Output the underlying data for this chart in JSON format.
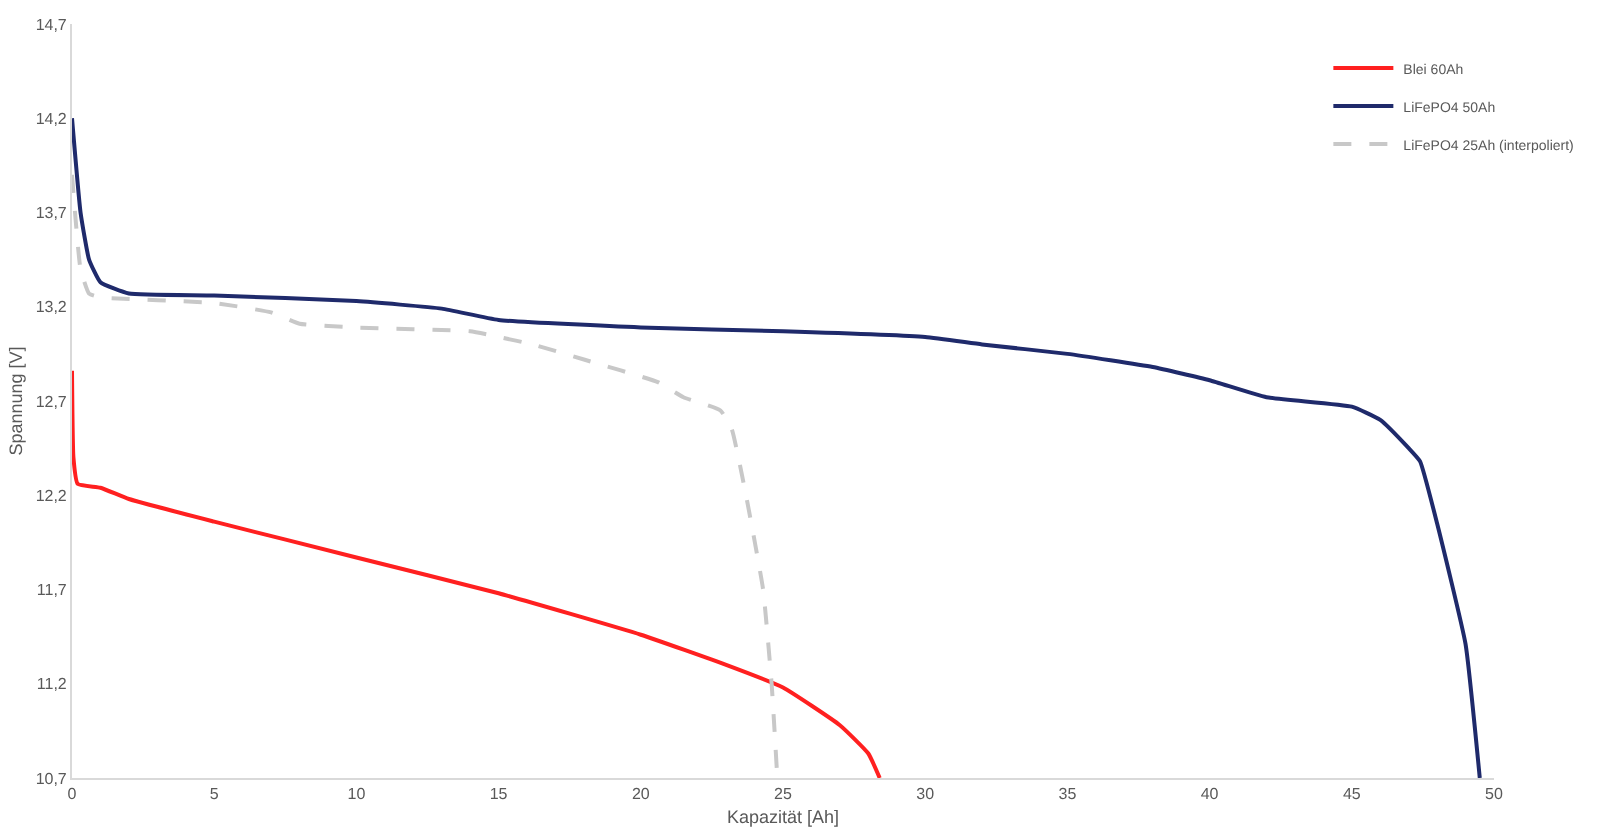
{
  "chart_data": {
    "type": "line",
    "xlabel": "Kapazität [Ah]",
    "ylabel": "Spannung [V]",
    "xlim": [
      0,
      50
    ],
    "xticks": [
      0,
      5,
      10,
      15,
      20,
      25,
      30,
      35,
      40,
      45,
      50
    ],
    "ylim": [
      10.7,
      14.7
    ],
    "yticks": [
      {
        "value": 10.7,
        "label": "10,7"
      },
      {
        "value": 11.2,
        "label": "11,2"
      },
      {
        "value": 11.7,
        "label": "11,7"
      },
      {
        "value": 12.2,
        "label": "12,2"
      },
      {
        "value": 12.7,
        "label": "12,7"
      },
      {
        "value": 13.2,
        "label": "13,2"
      },
      {
        "value": 13.7,
        "label": "13,7"
      },
      {
        "value": 14.2,
        "label": "14,2"
      },
      {
        "value": 14.7,
        "label": "14,7"
      }
    ],
    "grid": false,
    "legend": "top right",
    "marker": "none",
    "series": [
      {
        "name": "Blei 60Ah",
        "color": "#ff2020",
        "line_style": "solid",
        "x": [
          0,
          0.05,
          0.2,
          1,
          2,
          5,
          10,
          15,
          20,
          23,
          25,
          27,
          28,
          28.4
        ],
        "values": [
          12.86,
          12.4,
          12.26,
          12.24,
          12.18,
          12.06,
          11.87,
          11.68,
          11.46,
          11.3,
          11.18,
          10.98,
          10.83,
          10.7
        ]
      },
      {
        "name": "LiFePO4 50Ah",
        "color": "#1f2a6b",
        "line_style": "solid",
        "x": [
          0,
          0.3,
          0.6,
          1,
          2,
          5,
          10,
          13,
          15,
          20,
          25,
          30,
          32,
          35,
          38,
          40,
          42,
          45,
          46,
          47,
          47.4,
          48,
          49,
          49.5
        ],
        "values": [
          14.2,
          13.7,
          13.45,
          13.33,
          13.27,
          13.26,
          13.23,
          13.19,
          13.13,
          13.09,
          13.07,
          13.04,
          13.0,
          12.95,
          12.88,
          12.81,
          12.72,
          12.67,
          12.6,
          12.45,
          12.38,
          12.05,
          11.41,
          10.7
        ]
      },
      {
        "name": "LiFePO4 25Ah (interpoliert)",
        "color": "#c8c8c8",
        "line_style": "dashed",
        "x": [
          0,
          0.3,
          0.6,
          1,
          5,
          7,
          8,
          10,
          14,
          15,
          16.2,
          18,
          20.6,
          21.5,
          22.8,
          23.2,
          23.7,
          24.3,
          24.6,
          24.8
        ],
        "values": [
          13.9,
          13.4,
          13.27,
          13.25,
          13.22,
          13.17,
          13.11,
          13.09,
          13.07,
          13.04,
          13.0,
          12.92,
          12.8,
          12.72,
          12.65,
          12.55,
          12.2,
          11.7,
          11.2,
          10.7
        ]
      }
    ]
  }
}
